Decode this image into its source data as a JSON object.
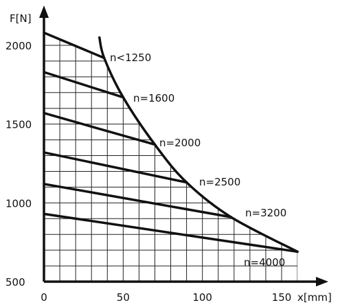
{
  "chart_data": {
    "type": "line",
    "title": "",
    "xlabel": "x[mm]",
    "ylabel": "F[N]",
    "xlim": [
      0,
      160
    ],
    "ylim": [
      500,
      2180
    ],
    "x_ticks": [
      "0",
      "50",
      "100",
      "150"
    ],
    "y_ticks": [
      "500",
      "1000",
      "1500",
      "2000"
    ],
    "grid": true,
    "colors": {
      "line": "#111111",
      "grid": "#222222",
      "background": "#ffffff"
    },
    "limit_curve": {
      "x": [
        35,
        38,
        50,
        70,
        90,
        118,
        160
      ],
      "y": [
        2050,
        1920,
        1670,
        1370,
        1130,
        910,
        690
      ]
    },
    "series": [
      {
        "name": "n<1250",
        "x": [
          0,
          38
        ],
        "y": [
          2080,
          1920
        ]
      },
      {
        "name": "n=1600",
        "x": [
          0,
          50
        ],
        "y": [
          1830,
          1670
        ]
      },
      {
        "name": "n=2000",
        "x": [
          0,
          70
        ],
        "y": [
          1570,
          1370
        ]
      },
      {
        "name": "n=2500",
        "x": [
          0,
          90
        ],
        "y": [
          1320,
          1130
        ]
      },
      {
        "name": "n=3200",
        "x": [
          0,
          118
        ],
        "y": [
          1120,
          910
        ]
      },
      {
        "name": "n=4000",
        "x": [
          0,
          160
        ],
        "y": [
          930,
          690
        ]
      }
    ]
  }
}
